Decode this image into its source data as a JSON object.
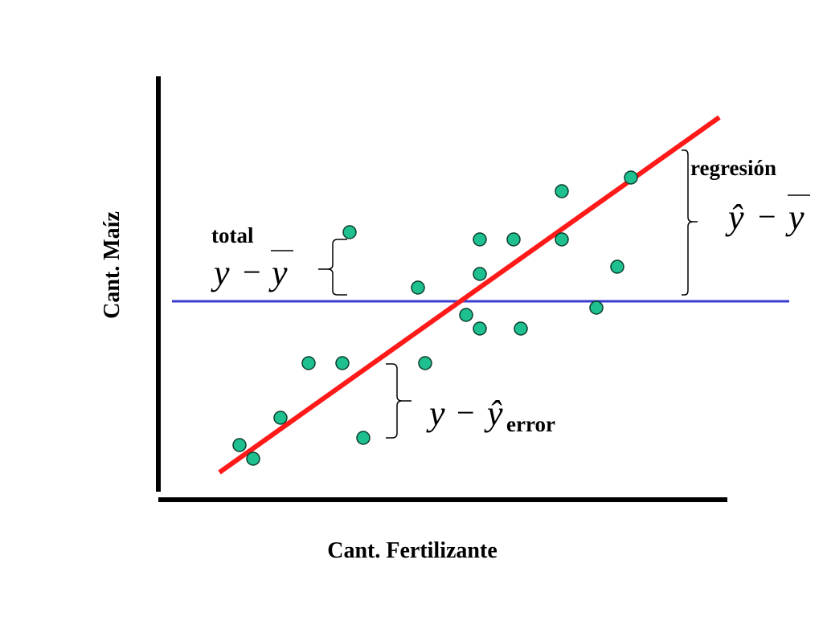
{
  "axes": {
    "x_label": "Cant. Fertilizante",
    "y_label": "Cant. Maíz"
  },
  "colors": {
    "axis": "#000000",
    "regression_line": "#ff1a1a",
    "mean_line": "#3b3bd1",
    "points_fill": "#1fc08f",
    "points_stroke": "#0a3d2c"
  },
  "annotations": {
    "total": {
      "label": "total",
      "symbol": "y",
      "op": "−",
      "bar_symbol": "y"
    },
    "regression": {
      "label": "regresión",
      "hat_symbol": "ŷ",
      "op": "−",
      "bar_symbol": "y"
    },
    "error": {
      "label": "error",
      "symbol": "y",
      "op": "−",
      "hat_symbol": "ŷ"
    }
  }
}
